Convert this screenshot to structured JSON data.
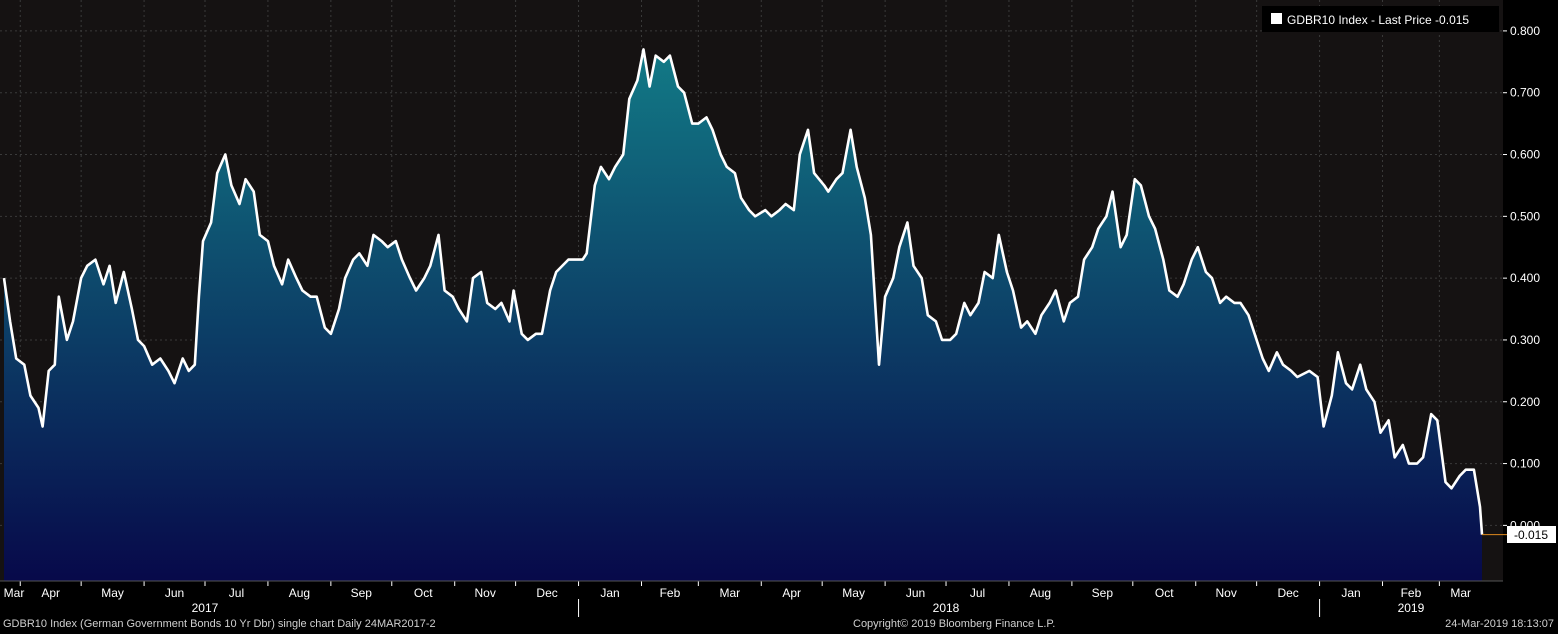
{
  "chart_data": {
    "type": "area",
    "legend": {
      "text": "GDBR10 Index - Last Price -0.015",
      "placement": "top-right",
      "swatch_color": "#ffffff"
    },
    "last_price_label": "-0.015",
    "ylim": [
      -0.09,
      0.85
    ],
    "y_ticks": [
      {
        "value": 0.8,
        "label": "0.800"
      },
      {
        "value": 0.7,
        "label": "0.700"
      },
      {
        "value": 0.6,
        "label": "0.600"
      },
      {
        "value": 0.5,
        "label": "0.500"
      },
      {
        "value": 0.4,
        "label": "0.400"
      },
      {
        "value": 0.3,
        "label": "0.300"
      },
      {
        "value": 0.2,
        "label": "0.200"
      },
      {
        "value": 0.1,
        "label": "0.100"
      },
      {
        "value": 0.0,
        "label": "0.000"
      }
    ],
    "x_month_ticks": [
      {
        "label": "Mar",
        "date": "2017-03-24"
      },
      {
        "label": "Apr",
        "date": "2017-04-01"
      },
      {
        "label": "May",
        "date": "2017-05-01"
      },
      {
        "label": "Jun",
        "date": "2017-06-01"
      },
      {
        "label": "Jul",
        "date": "2017-07-01"
      },
      {
        "label": "Aug",
        "date": "2017-08-01"
      },
      {
        "label": "Sep",
        "date": "2017-09-01"
      },
      {
        "label": "Oct",
        "date": "2017-10-01"
      },
      {
        "label": "Nov",
        "date": "2017-11-01"
      },
      {
        "label": "Dec",
        "date": "2017-12-01"
      },
      {
        "label": "Jan",
        "date": "2018-01-01"
      },
      {
        "label": "Feb",
        "date": "2018-02-01"
      },
      {
        "label": "Mar",
        "date": "2018-03-01"
      },
      {
        "label": "Apr",
        "date": "2018-04-01"
      },
      {
        "label": "May",
        "date": "2018-05-01"
      },
      {
        "label": "Jun",
        "date": "2018-06-01"
      },
      {
        "label": "Jul",
        "date": "2018-07-01"
      },
      {
        "label": "Aug",
        "date": "2018-08-01"
      },
      {
        "label": "Sep",
        "date": "2018-09-01"
      },
      {
        "label": "Oct",
        "date": "2018-10-01"
      },
      {
        "label": "Nov",
        "date": "2018-11-01"
      },
      {
        "label": "Dec",
        "date": "2018-12-01"
      },
      {
        "label": "Jan",
        "date": "2019-01-01"
      },
      {
        "label": "Feb",
        "date": "2019-02-01"
      },
      {
        "label": "Mar",
        "date": "2019-03-01"
      }
    ],
    "x_year_ticks": [
      {
        "label": "2017",
        "date": "2017-07-01"
      },
      {
        "label": "2018",
        "date": "2018-07-01"
      },
      {
        "label": "2019",
        "date": "2019-02-15"
      }
    ],
    "x_year_boundaries": [
      "2018-01-01",
      "2019-01-01"
    ],
    "series": [
      {
        "color": "#ffffff",
        "points": [
          [
            "2017-03-24",
            0.4
          ],
          [
            "2017-03-27",
            0.33
          ],
          [
            "2017-03-30",
            0.27
          ],
          [
            "2017-04-03",
            0.26
          ],
          [
            "2017-04-06",
            0.21
          ],
          [
            "2017-04-10",
            0.19
          ],
          [
            "2017-04-12",
            0.16
          ],
          [
            "2017-04-15",
            0.25
          ],
          [
            "2017-04-18",
            0.26
          ],
          [
            "2017-04-20",
            0.37
          ],
          [
            "2017-04-24",
            0.3
          ],
          [
            "2017-04-27",
            0.33
          ],
          [
            "2017-05-01",
            0.4
          ],
          [
            "2017-05-04",
            0.42
          ],
          [
            "2017-05-08",
            0.43
          ],
          [
            "2017-05-12",
            0.39
          ],
          [
            "2017-05-15",
            0.42
          ],
          [
            "2017-05-18",
            0.36
          ],
          [
            "2017-05-22",
            0.41
          ],
          [
            "2017-05-26",
            0.35
          ],
          [
            "2017-05-29",
            0.3
          ],
          [
            "2017-06-01",
            0.29
          ],
          [
            "2017-06-05",
            0.26
          ],
          [
            "2017-06-09",
            0.27
          ],
          [
            "2017-06-13",
            0.25
          ],
          [
            "2017-06-16",
            0.23
          ],
          [
            "2017-06-20",
            0.27
          ],
          [
            "2017-06-23",
            0.25
          ],
          [
            "2017-06-26",
            0.26
          ],
          [
            "2017-06-28",
            0.37
          ],
          [
            "2017-06-30",
            0.46
          ],
          [
            "2017-07-04",
            0.49
          ],
          [
            "2017-07-07",
            0.57
          ],
          [
            "2017-07-11",
            0.6
          ],
          [
            "2017-07-14",
            0.55
          ],
          [
            "2017-07-18",
            0.52
          ],
          [
            "2017-07-21",
            0.56
          ],
          [
            "2017-07-25",
            0.54
          ],
          [
            "2017-07-28",
            0.47
          ],
          [
            "2017-08-01",
            0.46
          ],
          [
            "2017-08-04",
            0.42
          ],
          [
            "2017-08-08",
            0.39
          ],
          [
            "2017-08-11",
            0.43
          ],
          [
            "2017-08-15",
            0.4
          ],
          [
            "2017-08-18",
            0.38
          ],
          [
            "2017-08-22",
            0.37
          ],
          [
            "2017-08-25",
            0.37
          ],
          [
            "2017-08-29",
            0.32
          ],
          [
            "2017-09-01",
            0.31
          ],
          [
            "2017-09-05",
            0.35
          ],
          [
            "2017-09-08",
            0.4
          ],
          [
            "2017-09-12",
            0.43
          ],
          [
            "2017-09-15",
            0.44
          ],
          [
            "2017-09-19",
            0.42
          ],
          [
            "2017-09-22",
            0.47
          ],
          [
            "2017-09-26",
            0.46
          ],
          [
            "2017-09-29",
            0.45
          ],
          [
            "2017-10-03",
            0.46
          ],
          [
            "2017-10-06",
            0.43
          ],
          [
            "2017-10-10",
            0.4
          ],
          [
            "2017-10-13",
            0.38
          ],
          [
            "2017-10-17",
            0.4
          ],
          [
            "2017-10-20",
            0.42
          ],
          [
            "2017-10-24",
            0.47
          ],
          [
            "2017-10-27",
            0.38
          ],
          [
            "2017-10-31",
            0.37
          ],
          [
            "2017-11-03",
            0.35
          ],
          [
            "2017-11-07",
            0.33
          ],
          [
            "2017-11-10",
            0.4
          ],
          [
            "2017-11-14",
            0.41
          ],
          [
            "2017-11-17",
            0.36
          ],
          [
            "2017-11-21",
            0.35
          ],
          [
            "2017-11-24",
            0.36
          ],
          [
            "2017-11-28",
            0.33
          ],
          [
            "2017-11-30",
            0.38
          ],
          [
            "2017-12-04",
            0.31
          ],
          [
            "2017-12-07",
            0.3
          ],
          [
            "2017-12-11",
            0.31
          ],
          [
            "2017-12-14",
            0.31
          ],
          [
            "2017-12-18",
            0.38
          ],
          [
            "2017-12-21",
            0.41
          ],
          [
            "2017-12-27",
            0.43
          ],
          [
            "2017-12-29",
            0.43
          ],
          [
            "2018-01-03",
            0.43
          ],
          [
            "2018-01-05",
            0.44
          ],
          [
            "2018-01-09",
            0.55
          ],
          [
            "2018-01-12",
            0.58
          ],
          [
            "2018-01-16",
            0.56
          ],
          [
            "2018-01-19",
            0.58
          ],
          [
            "2018-01-23",
            0.6
          ],
          [
            "2018-01-26",
            0.69
          ],
          [
            "2018-01-30",
            0.72
          ],
          [
            "2018-02-02",
            0.77
          ],
          [
            "2018-02-05",
            0.71
          ],
          [
            "2018-02-08",
            0.76
          ],
          [
            "2018-02-12",
            0.75
          ],
          [
            "2018-02-15",
            0.76
          ],
          [
            "2018-02-19",
            0.71
          ],
          [
            "2018-02-22",
            0.7
          ],
          [
            "2018-02-26",
            0.65
          ],
          [
            "2018-03-01",
            0.65
          ],
          [
            "2018-03-05",
            0.66
          ],
          [
            "2018-03-08",
            0.64
          ],
          [
            "2018-03-12",
            0.6
          ],
          [
            "2018-03-15",
            0.58
          ],
          [
            "2018-03-19",
            0.57
          ],
          [
            "2018-03-22",
            0.53
          ],
          [
            "2018-03-26",
            0.51
          ],
          [
            "2018-03-29",
            0.5
          ],
          [
            "2018-04-03",
            0.51
          ],
          [
            "2018-04-06",
            0.5
          ],
          [
            "2018-04-10",
            0.51
          ],
          [
            "2018-04-13",
            0.52
          ],
          [
            "2018-04-17",
            0.51
          ],
          [
            "2018-04-20",
            0.6
          ],
          [
            "2018-04-24",
            0.64
          ],
          [
            "2018-04-27",
            0.57
          ],
          [
            "2018-05-02",
            0.55
          ],
          [
            "2018-05-04",
            0.54
          ],
          [
            "2018-05-08",
            0.56
          ],
          [
            "2018-05-11",
            0.57
          ],
          [
            "2018-05-15",
            0.64
          ],
          [
            "2018-05-18",
            0.58
          ],
          [
            "2018-05-22",
            0.53
          ],
          [
            "2018-05-25",
            0.47
          ],
          [
            "2018-05-29",
            0.26
          ],
          [
            "2018-06-01",
            0.37
          ],
          [
            "2018-06-05",
            0.4
          ],
          [
            "2018-06-08",
            0.45
          ],
          [
            "2018-06-12",
            0.49
          ],
          [
            "2018-06-15",
            0.42
          ],
          [
            "2018-06-19",
            0.4
          ],
          [
            "2018-06-22",
            0.34
          ],
          [
            "2018-06-26",
            0.33
          ],
          [
            "2018-06-29",
            0.3
          ],
          [
            "2018-07-03",
            0.3
          ],
          [
            "2018-07-06",
            0.31
          ],
          [
            "2018-07-10",
            0.36
          ],
          [
            "2018-07-13",
            0.34
          ],
          [
            "2018-07-17",
            0.36
          ],
          [
            "2018-07-20",
            0.41
          ],
          [
            "2018-07-24",
            0.4
          ],
          [
            "2018-07-27",
            0.47
          ],
          [
            "2018-07-31",
            0.41
          ],
          [
            "2018-08-03",
            0.38
          ],
          [
            "2018-08-07",
            0.32
          ],
          [
            "2018-08-10",
            0.33
          ],
          [
            "2018-08-14",
            0.31
          ],
          [
            "2018-08-17",
            0.34
          ],
          [
            "2018-08-21",
            0.36
          ],
          [
            "2018-08-24",
            0.38
          ],
          [
            "2018-08-28",
            0.33
          ],
          [
            "2018-08-31",
            0.36
          ],
          [
            "2018-09-04",
            0.37
          ],
          [
            "2018-09-07",
            0.43
          ],
          [
            "2018-09-11",
            0.45
          ],
          [
            "2018-09-14",
            0.48
          ],
          [
            "2018-09-18",
            0.5
          ],
          [
            "2018-09-21",
            0.54
          ],
          [
            "2018-09-25",
            0.45
          ],
          [
            "2018-09-28",
            0.47
          ],
          [
            "2018-10-02",
            0.56
          ],
          [
            "2018-10-05",
            0.55
          ],
          [
            "2018-10-09",
            0.5
          ],
          [
            "2018-10-12",
            0.48
          ],
          [
            "2018-10-16",
            0.43
          ],
          [
            "2018-10-19",
            0.38
          ],
          [
            "2018-10-23",
            0.37
          ],
          [
            "2018-10-26",
            0.39
          ],
          [
            "2018-10-30",
            0.43
          ],
          [
            "2018-11-02",
            0.45
          ],
          [
            "2018-11-06",
            0.41
          ],
          [
            "2018-11-09",
            0.4
          ],
          [
            "2018-11-13",
            0.36
          ],
          [
            "2018-11-16",
            0.37
          ],
          [
            "2018-11-20",
            0.36
          ],
          [
            "2018-11-23",
            0.36
          ],
          [
            "2018-11-27",
            0.34
          ],
          [
            "2018-11-30",
            0.31
          ],
          [
            "2018-12-04",
            0.27
          ],
          [
            "2018-12-07",
            0.25
          ],
          [
            "2018-12-11",
            0.28
          ],
          [
            "2018-12-14",
            0.26
          ],
          [
            "2018-12-18",
            0.25
          ],
          [
            "2018-12-21",
            0.24
          ],
          [
            "2018-12-27",
            0.25
          ],
          [
            "2018-12-31",
            0.24
          ],
          [
            "2019-01-03",
            0.16
          ],
          [
            "2019-01-07",
            0.21
          ],
          [
            "2019-01-10",
            0.28
          ],
          [
            "2019-01-14",
            0.23
          ],
          [
            "2019-01-17",
            0.22
          ],
          [
            "2019-01-21",
            0.26
          ],
          [
            "2019-01-24",
            0.22
          ],
          [
            "2019-01-28",
            0.2
          ],
          [
            "2019-01-31",
            0.15
          ],
          [
            "2019-02-04",
            0.17
          ],
          [
            "2019-02-07",
            0.11
          ],
          [
            "2019-02-11",
            0.13
          ],
          [
            "2019-02-14",
            0.1
          ],
          [
            "2019-02-18",
            0.1
          ],
          [
            "2019-02-21",
            0.11
          ],
          [
            "2019-02-25",
            0.18
          ],
          [
            "2019-02-28",
            0.17
          ],
          [
            "2019-03-04",
            0.07
          ],
          [
            "2019-03-07",
            0.06
          ],
          [
            "2019-03-11",
            0.08
          ],
          [
            "2019-03-14",
            0.09
          ],
          [
            "2019-03-18",
            0.09
          ],
          [
            "2019-03-21",
            0.03
          ],
          [
            "2019-03-22",
            -0.015
          ]
        ]
      }
    ]
  },
  "footer": {
    "left": "GDBR10 Index (German Government Bonds 10 Yr Dbr) single chart  Daily 24MAR2017-2",
    "center": "Copyright© 2019 Bloomberg Finance L.P.",
    "right": "24-Mar-2019 18:13:07"
  },
  "colors": {
    "plot_background": "#151212",
    "grid": "#3a3a3a",
    "area_top": "#127a86",
    "area_bottom": "#07094a",
    "line": "#ffffff",
    "last_price_marker": "#e08a1e",
    "axis_text": "#ffffff"
  }
}
